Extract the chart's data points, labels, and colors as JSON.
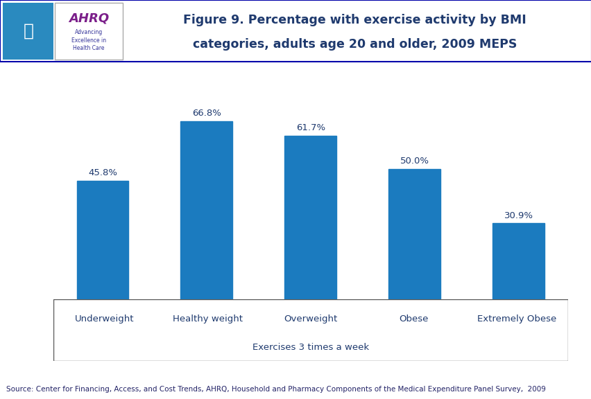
{
  "categories": [
    "Underweight",
    "Healthy weight",
    "Overweight",
    "Obese",
    "Extremely Obese"
  ],
  "values": [
    45.8,
    66.8,
    61.7,
    50.0,
    30.9
  ],
  "labels": [
    "45.8%",
    "66.8%",
    "61.7%",
    "50.0%",
    "30.9%"
  ],
  "bar_color": "#1b7bbf",
  "title_line1": "Figure 9. Percentage with exercise activity by BMI",
  "title_line2": "categories, adults age 20 and older, 2009 MEPS",
  "xlabel": "Exercises 3 times a week",
  "ylim": [
    0,
    80
  ],
  "title_color": "#1f3a6e",
  "tick_label_color": "#1f3a6e",
  "bar_label_color": "#1f3a6e",
  "xlabel_color": "#1f3a6e",
  "source_text": "Source: Center for Financing, Access, and Cost Trends, AHRQ, Household and Pharmacy Components of the Medical Expenditure Panel Survey,  2009",
  "bg_color": "#ffffff",
  "divider_color": "#0d1a6e",
  "box_border_color": "#5a5a5a",
  "title_fontsize": 12.5,
  "label_fontsize": 9.5,
  "tick_fontsize": 9.5,
  "source_fontsize": 7.5,
  "header_border_color": "#0000aa"
}
